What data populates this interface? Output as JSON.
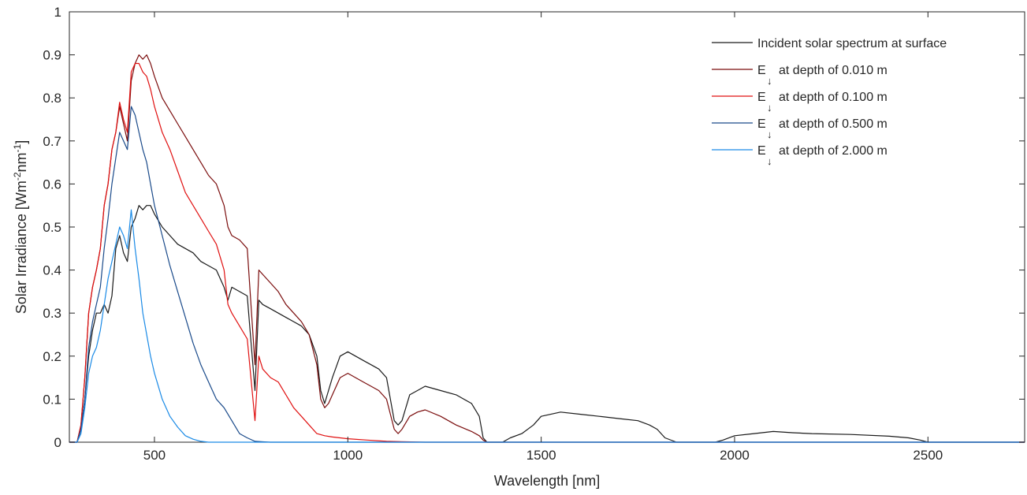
{
  "chart_data": {
    "type": "line",
    "xlabel": "Wavelength [nm]",
    "ylabel_parts": {
      "main": "Solar Irradiance [Wm",
      "exp1": "-2",
      "mid": "nm",
      "exp2": "-1",
      "close": "]"
    },
    "xlim": [
      280,
      2750
    ],
    "ylim": [
      0,
      1
    ],
    "x_ticks": [
      500,
      1000,
      1500,
      2000,
      2500
    ],
    "y_ticks": [
      0,
      0.1,
      0.2,
      0.3,
      0.4,
      0.5,
      0.6,
      0.7,
      0.8,
      0.9,
      1
    ],
    "y_tick_labels": [
      "0",
      "0.1",
      "0.2",
      "0.3",
      "0.4",
      "0.5",
      "0.6",
      "0.7",
      "0.8",
      "0.9",
      "1"
    ],
    "grid": false,
    "legend_position": "top-right",
    "series": [
      {
        "name": "Incident solar spectrum at surface",
        "legend_sub": "",
        "color": "#1a1a1a",
        "x": [
          280,
          300,
          310,
          320,
          330,
          340,
          350,
          360,
          370,
          380,
          390,
          400,
          410,
          420,
          430,
          440,
          450,
          460,
          470,
          480,
          490,
          500,
          520,
          540,
          560,
          580,
          600,
          620,
          640,
          660,
          680,
          690,
          700,
          720,
          740,
          760,
          770,
          780,
          800,
          820,
          840,
          860,
          880,
          900,
          920,
          930,
          940,
          950,
          960,
          980,
          1000,
          1020,
          1040,
          1060,
          1080,
          1100,
          1120,
          1130,
          1140,
          1160,
          1180,
          1200,
          1240,
          1280,
          1320,
          1340,
          1350,
          1360,
          1400,
          1420,
          1450,
          1480,
          1500,
          1550,
          1600,
          1650,
          1700,
          1750,
          1780,
          1800,
          1820,
          1850,
          1900,
          1950,
          1970,
          2000,
          2050,
          2100,
          2150,
          2200,
          2300,
          2400,
          2450,
          2480,
          2500,
          2600,
          2750
        ],
        "y": [
          0,
          0,
          0.03,
          0.1,
          0.2,
          0.26,
          0.3,
          0.3,
          0.32,
          0.3,
          0.34,
          0.45,
          0.48,
          0.44,
          0.42,
          0.5,
          0.52,
          0.55,
          0.54,
          0.55,
          0.55,
          0.53,
          0.5,
          0.48,
          0.46,
          0.45,
          0.44,
          0.42,
          0.41,
          0.4,
          0.36,
          0.33,
          0.36,
          0.35,
          0.34,
          0.12,
          0.33,
          0.32,
          0.31,
          0.3,
          0.29,
          0.28,
          0.27,
          0.25,
          0.2,
          0.12,
          0.09,
          0.12,
          0.15,
          0.2,
          0.21,
          0.2,
          0.19,
          0.18,
          0.17,
          0.15,
          0.05,
          0.04,
          0.05,
          0.11,
          0.12,
          0.13,
          0.12,
          0.11,
          0.09,
          0.06,
          0.01,
          0,
          0,
          0.01,
          0.02,
          0.04,
          0.06,
          0.07,
          0.065,
          0.06,
          0.055,
          0.05,
          0.04,
          0.03,
          0.01,
          0,
          0,
          0,
          0.005,
          0.015,
          0.02,
          0.025,
          0.022,
          0.02,
          0.018,
          0.014,
          0.01,
          0.005,
          0,
          0,
          0
        ]
      },
      {
        "name": "at depth of 0.010 m",
        "legend_sub": "↓",
        "color": "#7a0c0c",
        "x": [
          280,
          300,
          310,
          320,
          330,
          340,
          350,
          360,
          370,
          380,
          390,
          400,
          410,
          420,
          430,
          440,
          450,
          460,
          470,
          480,
          490,
          500,
          520,
          540,
          560,
          580,
          600,
          620,
          640,
          660,
          680,
          690,
          700,
          720,
          740,
          760,
          770,
          780,
          800,
          820,
          840,
          860,
          880,
          900,
          920,
          930,
          940,
          950,
          960,
          980,
          1000,
          1020,
          1040,
          1060,
          1080,
          1100,
          1120,
          1130,
          1140,
          1160,
          1180,
          1200,
          1240,
          1280,
          1320,
          1340,
          1350,
          1360,
          1400,
          1500,
          2000,
          2750
        ],
        "y": [
          0,
          0,
          0.04,
          0.15,
          0.3,
          0.36,
          0.4,
          0.45,
          0.55,
          0.6,
          0.68,
          0.72,
          0.78,
          0.74,
          0.7,
          0.84,
          0.88,
          0.9,
          0.89,
          0.9,
          0.88,
          0.85,
          0.8,
          0.77,
          0.74,
          0.71,
          0.68,
          0.65,
          0.62,
          0.6,
          0.55,
          0.5,
          0.48,
          0.47,
          0.45,
          0.18,
          0.4,
          0.39,
          0.37,
          0.35,
          0.32,
          0.3,
          0.28,
          0.25,
          0.18,
          0.1,
          0.08,
          0.09,
          0.11,
          0.15,
          0.16,
          0.15,
          0.14,
          0.13,
          0.12,
          0.1,
          0.03,
          0.02,
          0.03,
          0.06,
          0.07,
          0.075,
          0.06,
          0.04,
          0.025,
          0.015,
          0.005,
          0,
          0,
          0,
          0,
          0
        ]
      },
      {
        "name": "at depth of 0.100 m",
        "legend_sub": "↓",
        "color": "#e01010",
        "x": [
          280,
          300,
          310,
          320,
          330,
          340,
          350,
          360,
          370,
          380,
          390,
          400,
          410,
          420,
          430,
          440,
          450,
          460,
          470,
          480,
          490,
          500,
          520,
          540,
          560,
          580,
          600,
          620,
          640,
          660,
          680,
          690,
          700,
          720,
          740,
          760,
          770,
          780,
          800,
          820,
          840,
          860,
          880,
          900,
          920,
          940,
          960,
          980,
          1000,
          1050,
          1100,
          1150,
          1200,
          2750
        ],
        "y": [
          0,
          0,
          0.04,
          0.15,
          0.3,
          0.36,
          0.4,
          0.45,
          0.55,
          0.6,
          0.68,
          0.72,
          0.79,
          0.75,
          0.72,
          0.86,
          0.88,
          0.88,
          0.86,
          0.85,
          0.82,
          0.78,
          0.72,
          0.68,
          0.63,
          0.58,
          0.55,
          0.52,
          0.49,
          0.46,
          0.4,
          0.32,
          0.3,
          0.27,
          0.24,
          0.05,
          0.2,
          0.17,
          0.15,
          0.14,
          0.11,
          0.08,
          0.06,
          0.04,
          0.02,
          0.015,
          0.012,
          0.01,
          0.008,
          0.005,
          0.002,
          0.001,
          0,
          0
        ]
      },
      {
        "name": "at depth of 0.500 m",
        "legend_sub": "↓",
        "color": "#1a4a8a",
        "x": [
          280,
          300,
          310,
          320,
          330,
          340,
          350,
          360,
          370,
          380,
          390,
          400,
          410,
          420,
          430,
          440,
          450,
          460,
          470,
          480,
          490,
          500,
          520,
          540,
          560,
          580,
          600,
          620,
          640,
          660,
          680,
          700,
          720,
          740,
          760,
          780,
          800,
          2750
        ],
        "y": [
          0,
          0,
          0.03,
          0.1,
          0.22,
          0.28,
          0.32,
          0.36,
          0.45,
          0.52,
          0.6,
          0.66,
          0.72,
          0.7,
          0.68,
          0.78,
          0.76,
          0.72,
          0.68,
          0.65,
          0.6,
          0.55,
          0.48,
          0.41,
          0.35,
          0.29,
          0.23,
          0.18,
          0.14,
          0.1,
          0.08,
          0.05,
          0.02,
          0.01,
          0.002,
          0.001,
          0,
          0
        ]
      },
      {
        "name": "at depth of 2.000 m",
        "legend_sub": "↓",
        "color": "#1a8ae6",
        "x": [
          280,
          300,
          310,
          320,
          330,
          340,
          350,
          360,
          370,
          380,
          390,
          400,
          410,
          420,
          430,
          440,
          450,
          460,
          470,
          480,
          490,
          500,
          520,
          540,
          560,
          580,
          600,
          620,
          640,
          2750
        ],
        "y": [
          0,
          0,
          0.02,
          0.08,
          0.16,
          0.2,
          0.22,
          0.26,
          0.32,
          0.38,
          0.42,
          0.46,
          0.5,
          0.48,
          0.45,
          0.54,
          0.45,
          0.38,
          0.3,
          0.25,
          0.2,
          0.16,
          0.1,
          0.06,
          0.035,
          0.015,
          0.007,
          0.002,
          0,
          0
        ]
      }
    ],
    "legend_prefix": "E"
  }
}
